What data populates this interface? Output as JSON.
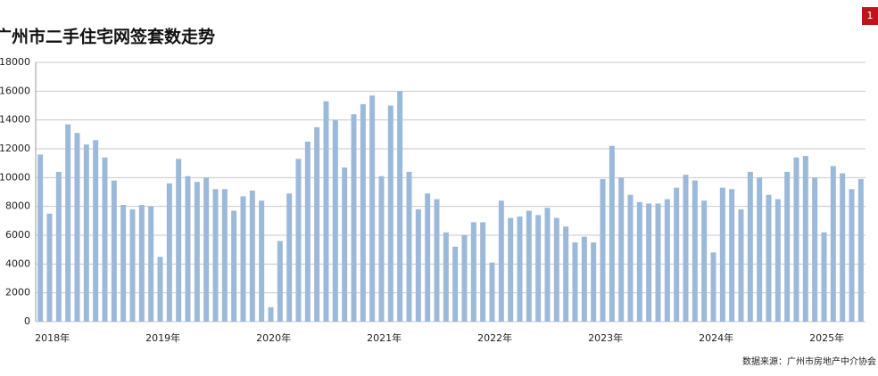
{
  "chart_data": {
    "type": "bar",
    "title": "广州市二手住宅网签套数走势",
    "source": "数据来源：广州市房地产中介协会",
    "badge": "1",
    "color": "#9db9d9",
    "grid": true,
    "ylim": [
      0,
      18000
    ],
    "yticks": [
      0,
      2000,
      4000,
      6000,
      8000,
      10000,
      12000,
      14000,
      16000,
      18000
    ],
    "categories": [
      "2018年",
      null,
      null,
      null,
      null,
      null,
      null,
      null,
      null,
      null,
      null,
      null,
      "2019年",
      null,
      null,
      null,
      null,
      null,
      null,
      null,
      null,
      null,
      null,
      null,
      "2020年",
      null,
      null,
      null,
      null,
      null,
      null,
      null,
      null,
      null,
      null,
      null,
      "2021年",
      null,
      null,
      null,
      null,
      null,
      null,
      null,
      null,
      null,
      null,
      null,
      "2022年",
      null,
      null,
      null,
      null,
      null,
      null,
      null,
      null,
      null,
      null,
      null,
      "2023年",
      null,
      null,
      null,
      null,
      null,
      null,
      null,
      null,
      null,
      null,
      null,
      "2024年",
      null,
      null,
      null,
      null,
      null,
      null,
      null,
      null,
      null,
      null,
      null,
      "2025年",
      null,
      null,
      null,
      null,
      null
    ],
    "values": [
      11600,
      7500,
      10400,
      13700,
      13100,
      12300,
      12600,
      11400,
      9800,
      8100,
      7800,
      8100,
      8000,
      4500,
      9600,
      11300,
      10100,
      9700,
      10000,
      9200,
      9200,
      7700,
      8700,
      9100,
      8400,
      1000,
      5600,
      8900,
      11300,
      12500,
      13500,
      15300,
      14000,
      10700,
      14400,
      15100,
      15700,
      10100,
      15000,
      16000,
      10400,
      7800,
      8900,
      8500,
      6200,
      5200,
      6000,
      6900,
      6900,
      4100,
      8400,
      7200,
      7300,
      7700,
      7400,
      7900,
      7200,
      6600,
      5500,
      5900,
      5500,
      9900,
      12200,
      10000,
      8800,
      8300,
      8200,
      8200,
      8500,
      9300,
      10200,
      9800,
      8400,
      4800,
      9300,
      9200,
      7800,
      10400,
      10000,
      8800,
      8500,
      10400,
      11400,
      11500,
      10000,
      6200,
      10800,
      10300,
      9200,
      9900
    ]
  }
}
